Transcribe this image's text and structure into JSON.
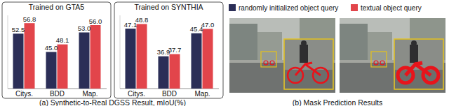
{
  "chart_data": [
    {
      "type": "bar",
      "title": "Trained on GTA5",
      "categories": [
        "Citys.",
        "BDD",
        "Map."
      ],
      "series": [
        {
          "name": "randomly initialized object query",
          "color": "#2b2e57",
          "values": [
            52.5,
            45.0,
            53.0
          ],
          "value_labels": [
            "52.5",
            "45.0",
            "53.0"
          ]
        },
        {
          "name": "textual object query",
          "color": "#e2454b",
          "values": [
            56.8,
            48.1,
            56.0
          ],
          "value_labels": [
            "56.8",
            "48.1",
            "56.0"
          ]
        }
      ],
      "ylim": [
        30,
        60
      ],
      "tick_labels": "x",
      "data_labels": true,
      "grid": false
    },
    {
      "type": "bar",
      "title": "Trained on SYNTHIA",
      "categories": [
        "Citys.",
        "BDD",
        "Map."
      ],
      "series": [
        {
          "color": "#2b2e57",
          "values": [
            47.1,
            36.9,
            45.4
          ],
          "value_labels": [
            "47.1",
            "36.9",
            "45.4"
          ]
        },
        {
          "color": "#e2454b",
          "values": [
            48.8,
            37.7,
            47.0
          ],
          "value_labels": [
            "48.8",
            "37.7",
            "47.0"
          ]
        }
      ],
      "ylim": [
        25,
        52
      ],
      "tick_labels": "x",
      "data_labels": true,
      "grid": false
    }
  ],
  "figure": {
    "caption_a": "(a) Synthetic-to-Real DGSS Result, mIoU(%)",
    "caption_b": "(b) Mask Prediction Results"
  }
}
